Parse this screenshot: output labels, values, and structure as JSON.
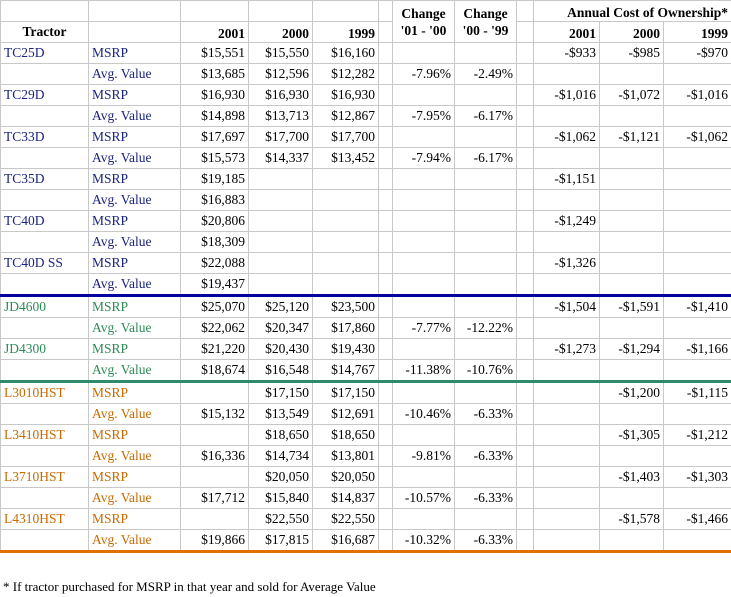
{
  "header": {
    "acq_title": "Annual Cost of Ownership*",
    "tractor": "Tractor",
    "y2001": "2001",
    "y2000": "2000",
    "y1999": "1999",
    "change1_line1": "Change",
    "change1_line2": "'01 - '00",
    "change2_line1": "Change",
    "change2_line2": "'00 - '99",
    "acq2001": "2001",
    "acq2000": "2000",
    "acq1999": "1999"
  },
  "rows": [
    {
      "group": "blue",
      "model": "TC25D",
      "kind": "MSRP",
      "v2001": "$15,551",
      "v2000": "$15,550",
      "v1999": "$16,160",
      "c1": "",
      "c2": "",
      "a2001": "-$933",
      "a2000": "-$985",
      "a1999": "-$970"
    },
    {
      "group": "blue",
      "model": "",
      "kind": "Avg. Value",
      "v2001": "$13,685",
      "v2000": "$12,596",
      "v1999": "$12,282",
      "c1": "-7.96%",
      "c2": "-2.49%",
      "a2001": "",
      "a2000": "",
      "a1999": ""
    },
    {
      "group": "blue",
      "model": "TC29D",
      "kind": "MSRP",
      "v2001": "$16,930",
      "v2000": "$16,930",
      "v1999": "$16,930",
      "c1": "",
      "c2": "",
      "a2001": "-$1,016",
      "a2000": "-$1,072",
      "a1999": "-$1,016"
    },
    {
      "group": "blue",
      "model": "",
      "kind": "Avg. Value",
      "v2001": "$14,898",
      "v2000": "$13,713",
      "v1999": "$12,867",
      "c1": "-7.95%",
      "c2": "-6.17%",
      "a2001": "",
      "a2000": "",
      "a1999": ""
    },
    {
      "group": "blue",
      "model": "TC33D",
      "kind": "MSRP",
      "v2001": "$17,697",
      "v2000": "$17,700",
      "v1999": "$17,700",
      "c1": "",
      "c2": "",
      "a2001": "-$1,062",
      "a2000": "-$1,121",
      "a1999": "-$1,062"
    },
    {
      "group": "blue",
      "model": "",
      "kind": "Avg. Value",
      "v2001": "$15,573",
      "v2000": "$14,337",
      "v1999": "$13,452",
      "c1": "-7.94%",
      "c2": "-6.17%",
      "a2001": "",
      "a2000": "",
      "a1999": ""
    },
    {
      "group": "blue",
      "model": "TC35D",
      "kind": "MSRP",
      "v2001": "$19,185",
      "v2000": "",
      "v1999": "",
      "c1": "",
      "c2": "",
      "a2001": "-$1,151",
      "a2000": "",
      "a1999": ""
    },
    {
      "group": "blue",
      "model": "",
      "kind": "Avg. Value",
      "v2001": "$16,883",
      "v2000": "",
      "v1999": "",
      "c1": "",
      "c2": "",
      "a2001": "",
      "a2000": "",
      "a1999": ""
    },
    {
      "group": "blue",
      "model": "TC40D",
      "kind": "MSRP",
      "v2001": "$20,806",
      "v2000": "",
      "v1999": "",
      "c1": "",
      "c2": "",
      "a2001": "-$1,249",
      "a2000": "",
      "a1999": ""
    },
    {
      "group": "blue",
      "model": "",
      "kind": "Avg. Value",
      "v2001": "$18,309",
      "v2000": "",
      "v1999": "",
      "c1": "",
      "c2": "",
      "a2001": "",
      "a2000": "",
      "a1999": ""
    },
    {
      "group": "blue",
      "model": "TC40D SS",
      "kind": "MSRP",
      "v2001": "$22,088",
      "v2000": "",
      "v1999": "",
      "c1": "",
      "c2": "",
      "a2001": "-$1,326",
      "a2000": "",
      "a1999": ""
    },
    {
      "group": "blue",
      "model": "",
      "kind": "Avg. Value",
      "v2001": "$19,437",
      "v2000": "",
      "v1999": "",
      "c1": "",
      "c2": "",
      "a2001": "",
      "a2000": "",
      "a1999": "",
      "sep": "sep-blue"
    },
    {
      "group": "green",
      "model": "JD4600",
      "kind": "MSRP",
      "v2001": "$25,070",
      "v2000": "$25,120",
      "v1999": "$23,500",
      "c1": "",
      "c2": "",
      "a2001": "-$1,504",
      "a2000": "-$1,591",
      "a1999": "-$1,410"
    },
    {
      "group": "green",
      "model": "",
      "kind": "Avg. Value",
      "v2001": "$22,062",
      "v2000": "$20,347",
      "v1999": "$17,860",
      "c1": "-7.77%",
      "c2": "-12.22%",
      "a2001": "",
      "a2000": "",
      "a1999": ""
    },
    {
      "group": "green",
      "model": "JD4300",
      "kind": "MSRP",
      "v2001": "$21,220",
      "v2000": "$20,430",
      "v1999": "$19,430",
      "c1": "",
      "c2": "",
      "a2001": "-$1,273",
      "a2000": "-$1,294",
      "a1999": "-$1,166"
    },
    {
      "group": "green",
      "model": "",
      "kind": "Avg. Value",
      "v2001": "$18,674",
      "v2000": "$16,548",
      "v1999": "$14,767",
      "c1": "-11.38%",
      "c2": "-10.76%",
      "a2001": "",
      "a2000": "",
      "a1999": "",
      "sep": "sep-green"
    },
    {
      "group": "orange",
      "model": "L3010HST",
      "kind": "MSRP",
      "v2001": "",
      "v2000": "$17,150",
      "v1999": "$17,150",
      "c1": "",
      "c2": "",
      "a2001": "",
      "a2000": "-$1,200",
      "a1999": "-$1,115"
    },
    {
      "group": "orange",
      "model": "",
      "kind": "Avg. Value",
      "v2001": "$15,132",
      "v2000": "$13,549",
      "v1999": "$12,691",
      "c1": "-10.46%",
      "c2": "-6.33%",
      "a2001": "",
      "a2000": "",
      "a1999": ""
    },
    {
      "group": "orange",
      "model": "L3410HST",
      "kind": "MSRP",
      "v2001": "",
      "v2000": "$18,650",
      "v1999": "$18,650",
      "c1": "",
      "c2": "",
      "a2001": "",
      "a2000": "-$1,305",
      "a1999": "-$1,212"
    },
    {
      "group": "orange",
      "model": "",
      "kind": "Avg. Value",
      "v2001": "$16,336",
      "v2000": "$14,734",
      "v1999": "$13,801",
      "c1": "-9.81%",
      "c2": "-6.33%",
      "a2001": "",
      "a2000": "",
      "a1999": ""
    },
    {
      "group": "orange",
      "model": "L3710HST",
      "kind": "MSRP",
      "v2001": "",
      "v2000": "$20,050",
      "v1999": "$20,050",
      "c1": "",
      "c2": "",
      "a2001": "",
      "a2000": "-$1,403",
      "a1999": "-$1,303"
    },
    {
      "group": "orange",
      "model": "",
      "kind": "Avg. Value",
      "v2001": "$17,712",
      "v2000": "$15,840",
      "v1999": "$14,837",
      "c1": "-10.57%",
      "c2": "-6.33%",
      "a2001": "",
      "a2000": "",
      "a1999": ""
    },
    {
      "group": "orange",
      "model": "L4310HST",
      "kind": "MSRP",
      "v2001": "",
      "v2000": "$22,550",
      "v1999": "$22,550",
      "c1": "",
      "c2": "",
      "a2001": "",
      "a2000": "-$1,578",
      "a1999": "-$1,466"
    },
    {
      "group": "orange",
      "model": "",
      "kind": "Avg. Value",
      "v2001": "$19,866",
      "v2000": "$17,815",
      "v1999": "$16,687",
      "c1": "-10.32%",
      "c2": "-6.33%",
      "a2001": "",
      "a2000": "",
      "a1999": "",
      "sep": "sep-orange"
    }
  ],
  "footnote": "* If tractor purchased for MSRP in that year and sold for Average Value",
  "colors": {
    "blue": "#1a237e",
    "green": "#2e8b57",
    "orange": "#c96a00"
  }
}
